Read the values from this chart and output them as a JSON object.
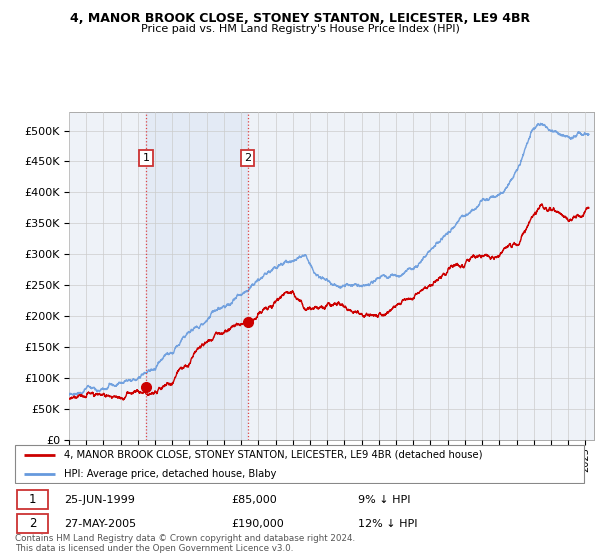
{
  "title": "4, MANOR BROOK CLOSE, STONEY STANTON, LEICESTER, LE9 4BR",
  "subtitle": "Price paid vs. HM Land Registry's House Price Index (HPI)",
  "background_color": "#ffffff",
  "plot_bg_color": "#eef2f8",
  "shade_color": "#d0dcf0",
  "grid_color": "#cccccc",
  "red_line_color": "#cc0000",
  "blue_line_color": "#6699dd",
  "sale1_date": "25-JUN-1999",
  "sale1_price": 85000,
  "sale1_pct": "9%",
  "sale1_year": 1999.47,
  "sale2_date": "27-MAY-2005",
  "sale2_price": 190000,
  "sale2_pct": "12%",
  "sale2_year": 2005.37,
  "legend_label_red": "4, MANOR BROOK CLOSE, STONEY STANTON, LEICESTER, LE9 4BR (detached house)",
  "legend_label_blue": "HPI: Average price, detached house, Blaby",
  "footer": "Contains HM Land Registry data © Crown copyright and database right 2024.\nThis data is licensed under the Open Government Licence v3.0.",
  "xmin": 1995.0,
  "xmax": 2025.5,
  "ymin": 0,
  "ymax": 530000,
  "yticks": [
    0,
    50000,
    100000,
    150000,
    200000,
    250000,
    300000,
    350000,
    400000,
    450000,
    500000
  ],
  "xticks": [
    1995,
    1996,
    1997,
    1998,
    1999,
    2000,
    2001,
    2002,
    2003,
    2004,
    2005,
    2006,
    2007,
    2008,
    2009,
    2010,
    2011,
    2012,
    2013,
    2014,
    2015,
    2016,
    2017,
    2018,
    2019,
    2020,
    2021,
    2022,
    2023,
    2024,
    2025
  ]
}
